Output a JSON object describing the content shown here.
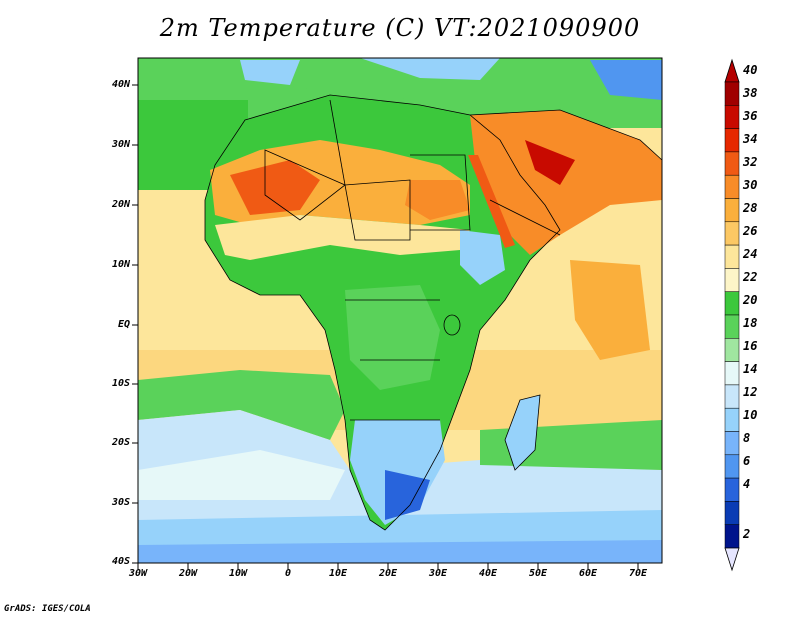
{
  "title": "2m Temperature (C) VT:2021090900",
  "credit": "GrADS: IGES/COLA",
  "map": {
    "region": "Africa",
    "variable": "2m Temperature",
    "units": "C",
    "valid_time": "2021090900",
    "lon_range": [
      -30,
      75
    ],
    "lat_range": [
      -40,
      45
    ],
    "lat_ticks": [
      "40N",
      "30N",
      "20N",
      "10N",
      "EQ",
      "10S",
      "20S",
      "30S",
      "40S"
    ],
    "lon_ticks": [
      "30W",
      "20W",
      "10W",
      "0",
      "10E",
      "20E",
      "30E",
      "40E",
      "50E",
      "60E",
      "70E"
    ]
  },
  "colorbar": {
    "labels": [
      "40",
      "38",
      "36",
      "34",
      "32",
      "30",
      "28",
      "26",
      "24",
      "22",
      "20",
      "18",
      "16",
      "14",
      "12",
      "10",
      "8",
      "6",
      "4",
      "2"
    ],
    "colors": [
      "#a00000",
      "#c80a00",
      "#e62800",
      "#f05a14",
      "#f88c28",
      "#faaf3c",
      "#fcc864",
      "#fde69b",
      "#fdf5c8",
      "#3cc83c",
      "#5ad25a",
      "#a0e6a0",
      "#e6f8f8",
      "#c8e6fa",
      "#96d2fa",
      "#78b4fa",
      "#5096f0",
      "#2864dc",
      "#0a3cb4",
      "#00148c"
    ],
    "top_triangle_color": "#b40000",
    "bottom_triangle_color": "#e6e6ff"
  }
}
